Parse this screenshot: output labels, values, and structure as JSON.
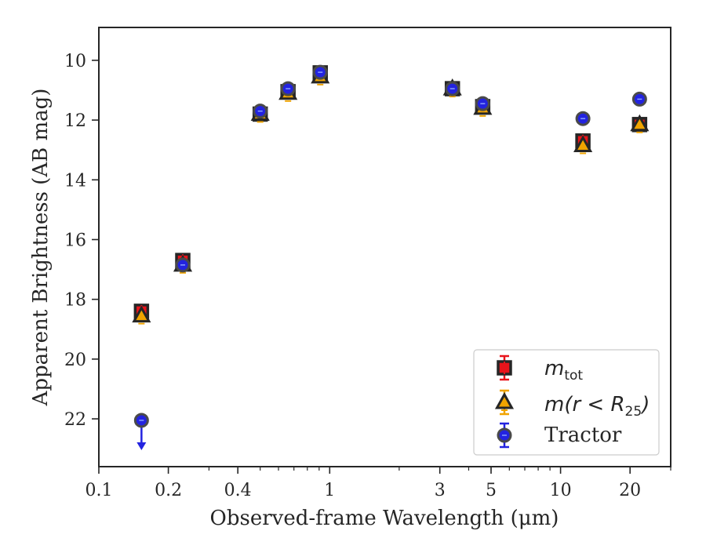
{
  "chart_data": {
    "type": "scatter",
    "xlabel": "Observed-frame Wavelength (μm)",
    "ylabel": "Apparent Brightness (AB mag)",
    "x_scale": "log",
    "y_inverted": true,
    "xlim": [
      0.1,
      30
    ],
    "ylim": [
      23.6,
      8.9
    ],
    "x_ticks": [
      0.1,
      0.2,
      0.4,
      1,
      3,
      5,
      10,
      20
    ],
    "x_tick_labels": [
      "0.1",
      "0.2",
      "0.4",
      "1",
      "3",
      "5",
      "10",
      "20"
    ],
    "y_ticks": [
      10,
      12,
      14,
      16,
      18,
      20,
      22
    ],
    "y_tick_labels": [
      "10",
      "12",
      "14",
      "16",
      "18",
      "20",
      "22"
    ],
    "grid": false,
    "legend_position": "lower-right",
    "series": [
      {
        "name": "m_tot",
        "legend_label": "m_tot",
        "marker": "square",
        "edge_color": "#262626",
        "face_color": "#e8141b",
        "errorbar_color": "#e8141b",
        "x": [
          0.153,
          0.231,
          0.5,
          0.66,
          0.91,
          3.4,
          4.6,
          12.5,
          22.0
        ],
        "y": [
          18.4,
          16.7,
          11.8,
          11.05,
          10.42,
          10.95,
          11.55,
          12.7,
          12.15
        ]
      },
      {
        "name": "m(r<R25)",
        "legend_label": "m(r < R25)",
        "marker": "triangle",
        "edge_color": "#262626",
        "face_color": "#f0a400",
        "errorbar_color": "#f0a400",
        "x": [
          0.153,
          0.231,
          0.5,
          0.66,
          0.91,
          3.4,
          4.6,
          12.5,
          22.0
        ],
        "y": [
          18.55,
          16.85,
          11.8,
          11.1,
          10.55,
          10.95,
          11.6,
          12.85,
          12.15
        ]
      },
      {
        "name": "Tractor",
        "legend_label": "Tractor",
        "marker": "circle",
        "edge_color": "#4a4a4a",
        "face_color": "#2323e0",
        "errorbar_color": "#2323e0",
        "x": [
          0.153,
          0.231,
          0.5,
          0.66,
          0.91,
          3.4,
          4.6,
          12.5,
          22.0
        ],
        "y": [
          22.05,
          16.85,
          11.7,
          10.95,
          10.4,
          10.95,
          11.45,
          11.95,
          11.3
        ],
        "upper_limit_index": 0
      }
    ]
  },
  "legend": {
    "m_tot_base": "m",
    "m_tot_sub": "tot",
    "mr_prefix": "m",
    "mr_mid": "(r < R",
    "mr_sub": "25",
    "mr_suffix": ")",
    "tractor": "Tractor"
  }
}
